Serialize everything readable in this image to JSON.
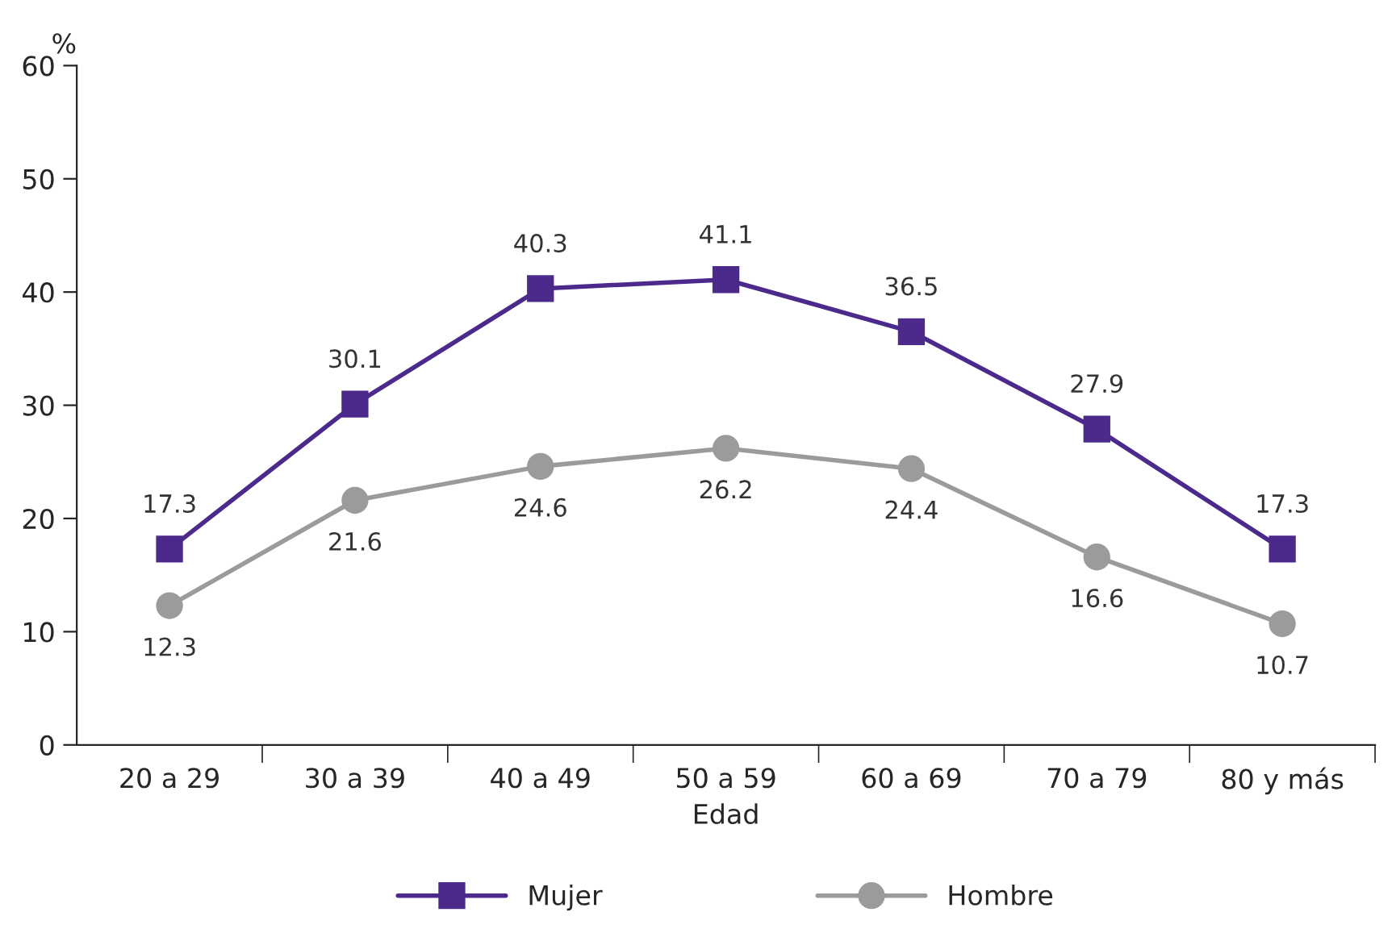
{
  "chart_data": {
    "type": "line",
    "ylabel": "%",
    "xlabel": "Edad",
    "categories": [
      "20 a 29",
      "30 a 39",
      "40 a 49",
      "50 a 59",
      "60 a 69",
      "70 a 79",
      "80 y más"
    ],
    "series": [
      {
        "name": "Mujer",
        "color": "#4b2a8c",
        "marker": "square",
        "values": [
          17.3,
          30.1,
          40.3,
          41.1,
          36.5,
          27.9,
          17.3
        ]
      },
      {
        "name": "Hombre",
        "color": "#9b9b9b",
        "marker": "circle",
        "values": [
          12.3,
          21.6,
          24.6,
          26.2,
          24.4,
          16.6,
          10.7
        ]
      }
    ],
    "ylim": [
      0,
      60
    ],
    "yticks": [
      0,
      10,
      20,
      30,
      40,
      50,
      60
    ],
    "data_labels": true,
    "grid": false,
    "legend": "bottom",
    "line_style": "solid"
  }
}
